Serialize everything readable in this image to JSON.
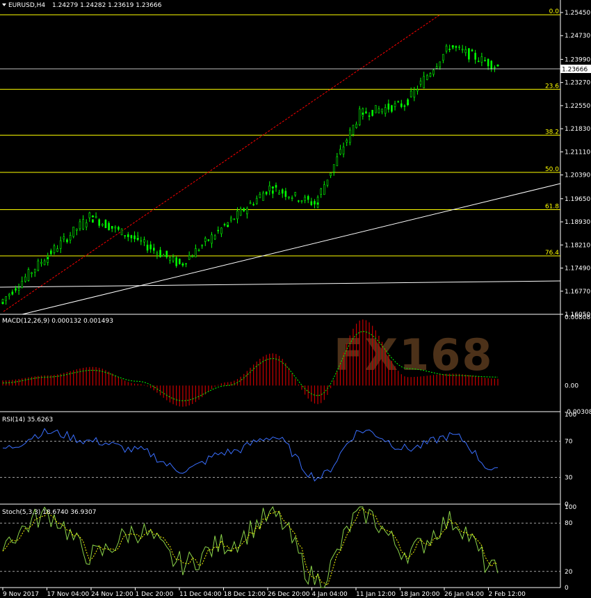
{
  "main": {
    "symbol_label": "EURUSD,H4",
    "ohlc_label": "1.24279 1.24282 1.23619 1.23666",
    "current_price_label": "1.23666",
    "price_ticks": [
      "1.25450",
      "1.24730",
      "1.23990",
      "1.23270",
      "1.22550",
      "1.21830",
      "1.21110",
      "1.20390",
      "1.19650",
      "1.18930",
      "1.18210",
      "1.17490",
      "1.16770",
      "1.16050"
    ],
    "fib_levels": [
      {
        "label": "0.0",
        "price": 1.2538
      },
      {
        "label": "23.6",
        "price": 1.2306
      },
      {
        "label": "38.2",
        "price": 1.2163
      },
      {
        "label": "50.0",
        "price": 1.2047
      },
      {
        "label": "61.8",
        "price": 1.1931
      },
      {
        "label": "76.4",
        "price": 1.1787
      }
    ]
  },
  "macd": {
    "label": "MACD(12,26,9) 0.000132 0.001493",
    "ticks": [
      "0.008086",
      "0.00",
      "-0.003086"
    ]
  },
  "rsi": {
    "label": "RSI(14) 35.6263",
    "ticks": [
      "100",
      "70",
      "30",
      "0"
    ]
  },
  "stoch": {
    "label": "Stoch(5,3,3) 18.6740 36.9307",
    "ticks": [
      "100",
      "80",
      "20",
      "0"
    ]
  },
  "time_axis": [
    "9 Nov 2017",
    "17 Nov 04:00",
    "24 Nov 12:00",
    "1 Dec 20:00",
    "11 Dec 04:00",
    "18 Dec 12:00",
    "26 Dec 20:00",
    "4 Jan 04:00",
    "11 Jan 12:00",
    "18 Jan 20:00",
    "26 Jan 04:00",
    "2 Feb 12:00"
  ],
  "watermark": "FX168",
  "colors": {
    "background": "#000000",
    "candles": "#00ff00",
    "fib": "#ffff00",
    "trendline": "#ff0000",
    "macd_hist": "#c80000",
    "macd_signal": "#00ff00",
    "rsi": "#3a6fff",
    "stoch_main": "#8bd44a",
    "stoch_signal": "#ffff00"
  },
  "chart_data": {
    "type": "line",
    "symbol": "EURUSD",
    "timeframe": "H4",
    "x": [
      "9 Nov 2017",
      "17 Nov 04:00",
      "24 Nov 12:00",
      "1 Dec 20:00",
      "11 Dec 04:00",
      "18 Dec 12:00",
      "26 Dec 20:00",
      "4 Jan 04:00",
      "11 Jan 12:00",
      "18 Jan 20:00",
      "26 Jan 04:00",
      "2 Feb 12:00"
    ],
    "series": [
      {
        "name": "EURUSD",
        "values": [
          1.164,
          1.178,
          1.191,
          1.184,
          1.176,
          1.188,
          1.2,
          1.195,
          1.223,
          1.226,
          1.244,
          1.238
        ]
      }
    ],
    "ylim": [
      1.1605,
      1.2558
    ],
    "macd": {
      "histogram": [
        0.0006,
        0.0012,
        0.0022,
        0.0002,
        -0.0025,
        0.0004,
        0.0038,
        -0.0022,
        0.0078,
        0.001,
        0.0014,
        0.0008
      ],
      "signal": [
        0.0003,
        0.001,
        0.0018,
        0.0005,
        -0.0018,
        0.0,
        0.0032,
        -0.0012,
        0.0064,
        0.002,
        0.0012,
        0.001
      ],
      "ylim": [
        -0.003086,
        0.008086
      ]
    },
    "rsi": {
      "values": [
        62,
        80,
        70,
        60,
        38,
        58,
        75,
        30,
        82,
        62,
        76,
        36
      ],
      "levels": [
        70,
        30
      ],
      "ylim": [
        0,
        100
      ]
    },
    "stoch": {
      "main": [
        60,
        90,
        40,
        70,
        30,
        55,
        88,
        10,
        92,
        45,
        82,
        19
      ],
      "signal": [
        58,
        85,
        45,
        66,
        36,
        52,
        84,
        18,
        88,
        50,
        78,
        37
      ],
      "levels": [
        80,
        20
      ],
      "ylim": [
        0,
        100
      ]
    }
  }
}
